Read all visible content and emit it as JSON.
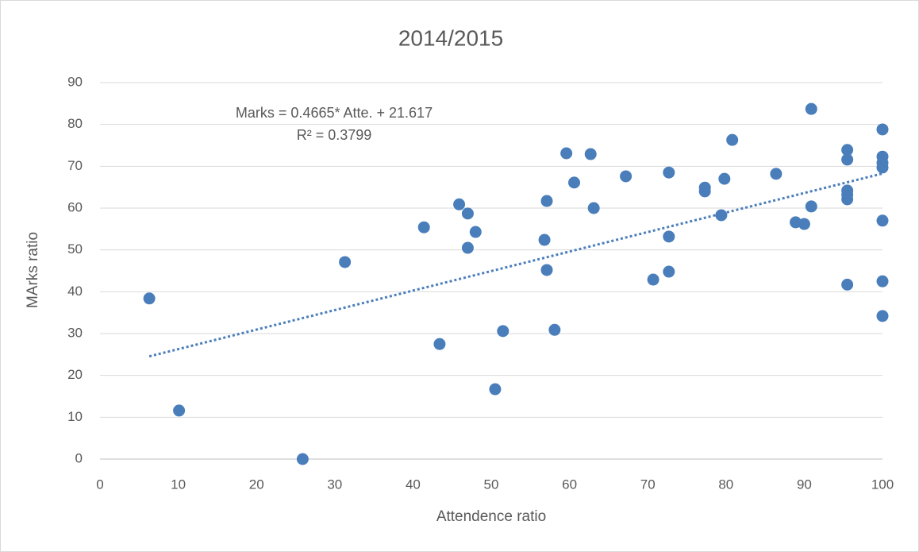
{
  "chart_data": {
    "type": "scatter",
    "title": "2014/2015",
    "x_label": "Attendence ratio",
    "y_label": "MArks ratio",
    "series": [
      {
        "name": "Marks",
        "color": "#4a7ebb",
        "x": [
          6.3,
          10.1,
          25.9,
          31.3,
          41.4,
          43.4,
          45.9,
          47.0,
          47.0,
          48.0,
          50.5,
          51.5,
          56.8,
          57.1,
          57.1,
          58.1,
          59.6,
          60.6,
          62.7,
          63.1,
          67.2,
          70.7,
          72.7,
          72.7,
          72.7,
          77.3,
          77.3,
          79.4,
          79.8,
          80.8,
          86.4,
          88.9,
          90.0,
          90.9,
          90.9,
          95.5,
          95.5,
          95.5,
          95.5,
          95.5,
          95.5,
          100,
          100,
          100,
          100,
          100,
          100,
          100
        ],
        "values": [
          38.4,
          11.6,
          0,
          47.1,
          55.4,
          27.5,
          60.9,
          58.7,
          50.5,
          54.3,
          16.7,
          30.6,
          52.4,
          61.7,
          45.2,
          30.9,
          73.1,
          66.1,
          72.9,
          60.0,
          67.6,
          42.9,
          68.5,
          53.2,
          44.8,
          64.9,
          64.0,
          58.3,
          67.0,
          76.3,
          68.2,
          56.6,
          56.2,
          60.4,
          83.7,
          73.9,
          71.6,
          64.2,
          63.2,
          62.1,
          41.7,
          78.8,
          72.3,
          70.8,
          69.7,
          57.0,
          42.5,
          34.2
        ]
      }
    ],
    "trendline": {
      "slope": 0.4665,
      "intercept": 21.617,
      "equation": "Marks = 0.4665* Atte. + 21.617",
      "r2": "R² = 0.3799",
      "style": "dotted"
    },
    "xlim": [
      0,
      100
    ],
    "xticks": [
      0,
      10,
      20,
      30,
      40,
      50,
      60,
      70,
      80,
      90,
      100
    ],
    "ylim": [
      0,
      90
    ],
    "yticks": [
      0,
      10,
      20,
      30,
      40,
      50,
      60,
      70,
      80,
      90
    ],
    "grid": true
  }
}
